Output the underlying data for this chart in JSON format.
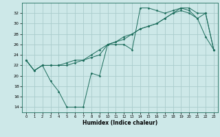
{
  "xlabel": "Humidex (Indice chaleur)",
  "bg_color": "#cde8e8",
  "grid_color": "#aacccc",
  "line_color": "#1a6b5a",
  "xlim": [
    -0.5,
    23.5
  ],
  "ylim": [
    13,
    34
  ],
  "yticks": [
    14,
    16,
    18,
    20,
    22,
    24,
    26,
    28,
    30,
    32
  ],
  "xticks": [
    0,
    1,
    2,
    3,
    4,
    5,
    6,
    7,
    8,
    9,
    10,
    11,
    12,
    13,
    14,
    15,
    16,
    17,
    18,
    19,
    20,
    21,
    22,
    23
  ],
  "line1_x": [
    0,
    1,
    2,
    3,
    4,
    5,
    6,
    7,
    8,
    9,
    10,
    11,
    12,
    13,
    14,
    15,
    16,
    17,
    18,
    19,
    20,
    21,
    22,
    23
  ],
  "line1_y": [
    23,
    21,
    22,
    19,
    17,
    14,
    14,
    14,
    20.5,
    20,
    26,
    26,
    26,
    25,
    33,
    33,
    32.5,
    32,
    32.5,
    33,
    32.5,
    31,
    27.5,
    25
  ],
  "line2_x": [
    0,
    1,
    2,
    3,
    4,
    5,
    6,
    7,
    8,
    9,
    10,
    11,
    12,
    13,
    14,
    15,
    16,
    17,
    18,
    19,
    20,
    21,
    22,
    23
  ],
  "line2_y": [
    23,
    21,
    22,
    22,
    22,
    22.5,
    23,
    23,
    23.5,
    24,
    26,
    26.5,
    27,
    28,
    29,
    29.5,
    30,
    31,
    32,
    32.5,
    32,
    31,
    32,
    25
  ],
  "line3_x": [
    0,
    1,
    2,
    3,
    4,
    5,
    6,
    7,
    8,
    9,
    10,
    11,
    12,
    13,
    14,
    15,
    16,
    17,
    18,
    19,
    20,
    21,
    22,
    23
  ],
  "line3_y": [
    23,
    21,
    22,
    22,
    22,
    22,
    22.5,
    23,
    24,
    25,
    26,
    26.5,
    27.5,
    28,
    29,
    29.5,
    30,
    31,
    32,
    33,
    33,
    32,
    32,
    25
  ]
}
